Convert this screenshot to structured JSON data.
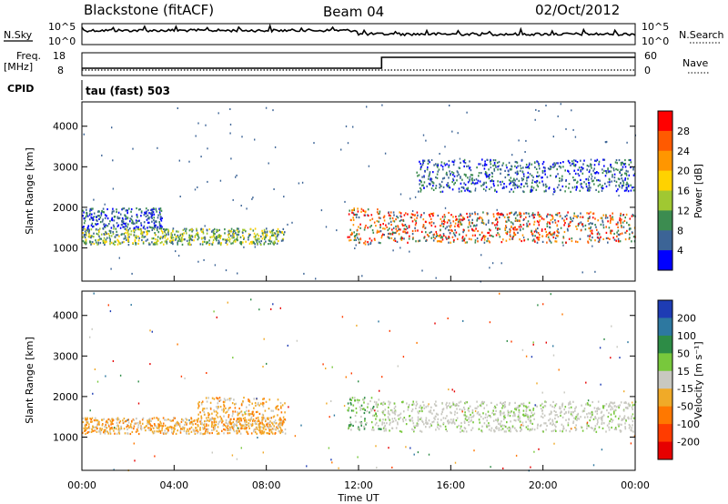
{
  "header": {
    "title": "Blackstone (fitACF)",
    "beam": "Beam 04",
    "date": "02/Oct/2012"
  },
  "status_panels": {
    "left_labels": {
      "nsky": "N.Sky",
      "freq": "Freq.",
      "freq_unit": "[MHz]",
      "cpid": "CPID"
    },
    "right_labels": {
      "nsearch": "N.Search",
      "nave": "Nave"
    },
    "noise_ticks_left": [
      "10^5",
      "10^0"
    ],
    "noise_ticks_right": [
      "10^5",
      "10^0"
    ],
    "freq_ticks": [
      "18",
      "8"
    ],
    "nave_ticks": [
      "60",
      "0"
    ],
    "cpid_text": "tau (fast) 503",
    "nave_step_time_hours": 13.0
  },
  "x_axis": {
    "label": "Time UT",
    "tick_labels": [
      "00:00",
      "04:00",
      "08:00",
      "12:00",
      "16:00",
      "20:00",
      "00:00"
    ],
    "tick_hours": [
      0,
      4,
      8,
      12,
      16,
      20,
      24
    ],
    "range_hours": [
      0,
      24
    ]
  },
  "y_axis": {
    "label": "Slant Range [km]",
    "tick_labels": [
      "1000",
      "2000",
      "3000",
      "4000"
    ],
    "tick_values": [
      1000,
      2000,
      3000,
      4000
    ],
    "range_km": [
      180,
      4600
    ]
  },
  "colorbars": {
    "power": {
      "label": "Power [dB]",
      "tick_labels": [
        "28",
        "24",
        "20",
        "16",
        "12",
        "8",
        "4"
      ],
      "colors": [
        "#ff0000",
        "#ff5a00",
        "#ff9600",
        "#ffd200",
        "#a0c832",
        "#3c8c50",
        "#3c6496",
        "#0000ff"
      ]
    },
    "velocity": {
      "label": "Velocity [m s⁻¹]",
      "tick_labels": [
        "200",
        "100",
        "50",
        "15",
        "-15",
        "-50",
        "-100",
        "-200"
      ],
      "colors": [
        "#1e3cb4",
        "#2d78a0",
        "#2d8c46",
        "#78c83c",
        "#c8c8c0",
        "#f0aa28",
        "#ff7800",
        "#ff3c00",
        "#e60000"
      ]
    }
  },
  "chart_data": [
    {
      "type": "heatmap",
      "name": "Power",
      "x_unit": "hours UT",
      "y_unit": "km",
      "regions": [
        {
          "t": [
            0.0,
            8.8
          ],
          "range_km": [
            1100,
            1500
          ],
          "level": "mid"
        },
        {
          "t": [
            0.0,
            3.5
          ],
          "range_km": [
            1500,
            2000
          ],
          "level": "low"
        },
        {
          "t": [
            11.5,
            13.0
          ],
          "range_km": [
            1100,
            2000
          ],
          "level": "high"
        },
        {
          "t": [
            13.0,
            24.0
          ],
          "range_km": [
            1150,
            1900
          ],
          "level": "high"
        },
        {
          "t": [
            14.5,
            24.0
          ],
          "range_km": [
            2400,
            3200
          ],
          "level": "low"
        }
      ]
    },
    {
      "type": "heatmap",
      "name": "Velocity",
      "x_unit": "hours UT",
      "y_unit": "km",
      "regions": [
        {
          "t": [
            0.0,
            8.8
          ],
          "range_km": [
            1100,
            1500
          ],
          "level": "negative"
        },
        {
          "t": [
            5.0,
            8.8
          ],
          "range_km": [
            1200,
            2000
          ],
          "level": "negative"
        },
        {
          "t": [
            13.0,
            24.0
          ],
          "range_km": [
            1150,
            1900
          ],
          "level": "near-zero"
        },
        {
          "t": [
            11.5,
            13.0
          ],
          "range_km": [
            1200,
            2000
          ],
          "level": "positive"
        }
      ]
    }
  ]
}
